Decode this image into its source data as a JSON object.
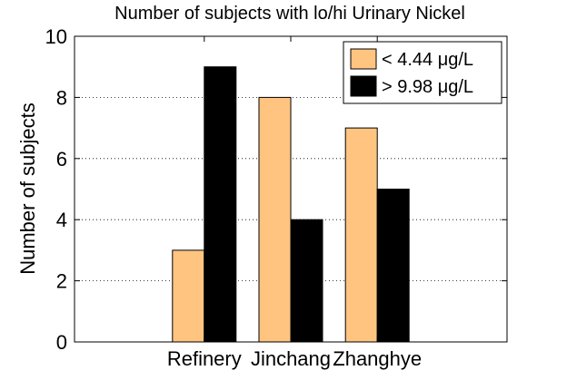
{
  "chart_data": {
    "type": "bar",
    "title": "Number of subjects with lo/hi Urinary Nickel",
    "xlabel": "",
    "ylabel": "Number of subjects",
    "categories": [
      "Refinery",
      "Jinchang",
      "Zhanghye"
    ],
    "series": [
      {
        "name": "<  4.44 μg/L",
        "values": [
          3,
          8,
          7
        ],
        "color": "#FFC580"
      },
      {
        "name": ">  9.98 μg/L",
        "values": [
          9,
          4,
          5
        ],
        "color": "#000000"
      }
    ],
    "ylim": [
      0,
      10
    ],
    "yticks": [
      "0",
      "2",
      "4",
      "6",
      "8",
      "10"
    ],
    "grid": "horizontal dotted",
    "legend_position": "top-right"
  }
}
